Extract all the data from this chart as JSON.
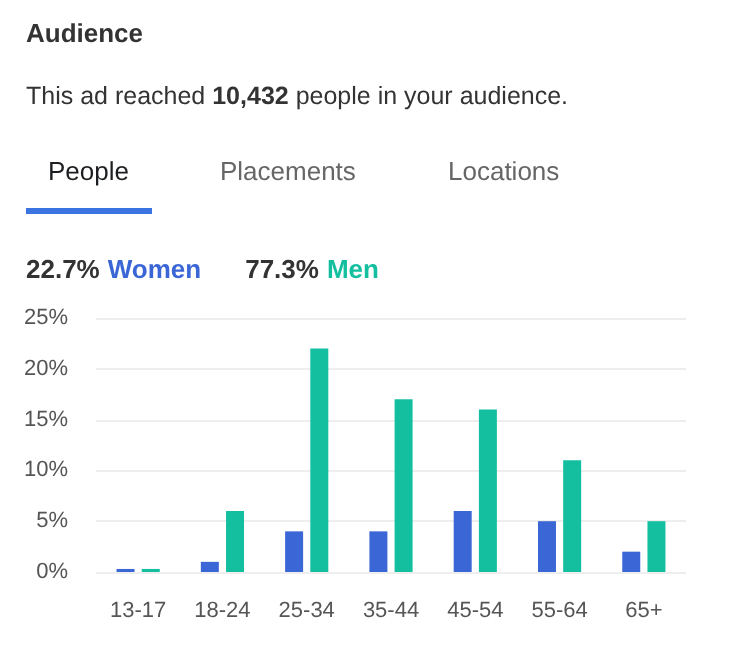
{
  "chart_data": {
    "type": "bar",
    "title": "Audience",
    "subtitle": "This ad reached 10,432 people in your audience.",
    "annotations": [
      "People",
      "Placements",
      "Locations",
      "22.7%",
      "77.3%"
    ],
    "categories": [
      "13-17",
      "18-24",
      "25-34",
      "35-44",
      "45-54",
      "55-64",
      "65+"
    ],
    "series": [
      {
        "name": "Women",
        "color": "#3b66d6",
        "values": [
          0.3,
          1,
          4,
          4,
          6,
          5,
          2
        ]
      },
      {
        "name": "Men",
        "color": "#14bfa0",
        "values": [
          0.3,
          6,
          22,
          17,
          16,
          11,
          5
        ]
      }
    ],
    "ylim": [
      0,
      25
    ],
    "yticks": [
      {
        "value": 0,
        "label": "0%"
      },
      {
        "value": 5,
        "label": "5%"
      },
      {
        "value": 10,
        "label": "10%"
      },
      {
        "value": 15,
        "label": "15%"
      },
      {
        "value": 20,
        "label": "20%"
      },
      {
        "value": 25,
        "label": "25%"
      }
    ],
    "grid": "y",
    "legend": "top left"
  }
}
